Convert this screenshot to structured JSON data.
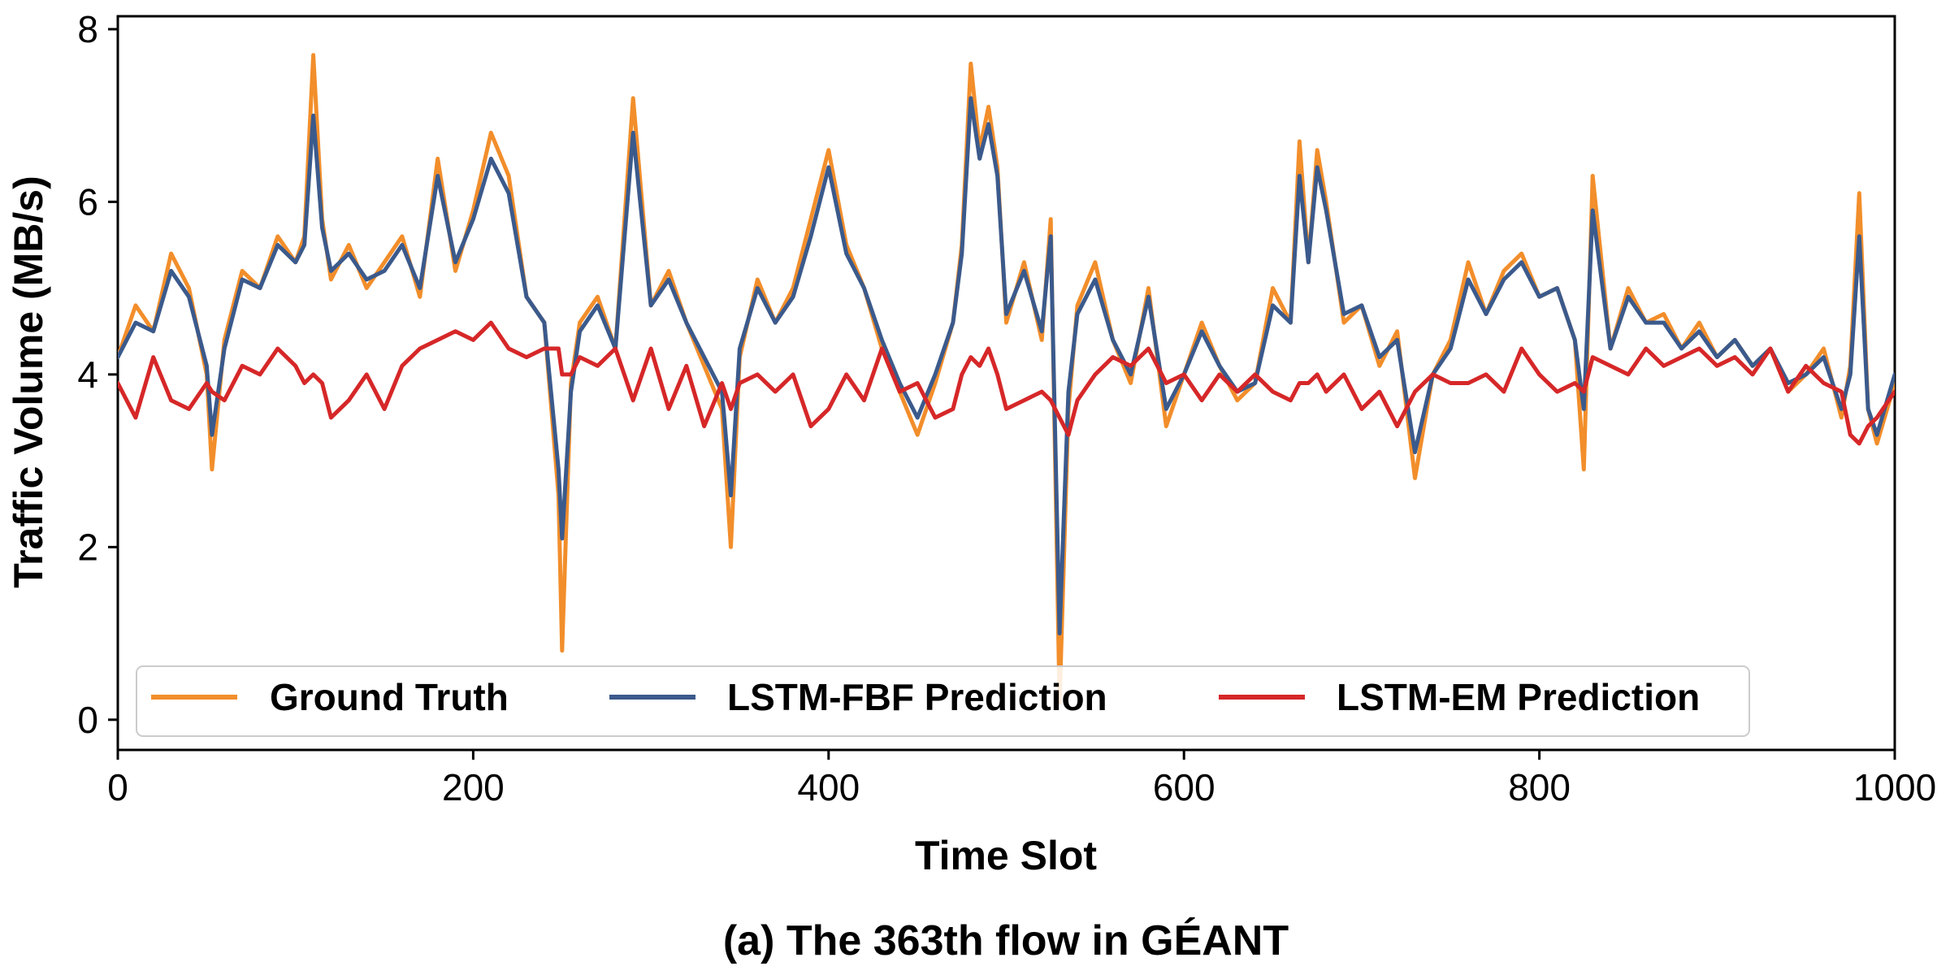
{
  "caption": "(a) The 363th flow in GÉANT",
  "chart_data": {
    "type": "line",
    "xlabel": "Time Slot",
    "ylabel": "Traffic Volume (MB/s)",
    "xlim": [
      0,
      1000
    ],
    "ylim": [
      -0.35,
      8.15
    ],
    "xticks": [
      0,
      200,
      400,
      600,
      800,
      1000
    ],
    "yticks": [
      0,
      2,
      4,
      6,
      8
    ],
    "grid": false,
    "legend_position": "bottom, inside plot",
    "x": [
      0,
      10,
      20,
      30,
      40,
      50,
      53,
      60,
      70,
      80,
      90,
      100,
      105,
      110,
      115,
      120,
      130,
      140,
      150,
      160,
      170,
      180,
      190,
      200,
      210,
      220,
      230,
      240,
      248,
      250,
      255,
      260,
      270,
      280,
      290,
      300,
      310,
      320,
      330,
      340,
      345,
      350,
      360,
      370,
      380,
      390,
      400,
      410,
      420,
      430,
      440,
      450,
      460,
      470,
      475,
      480,
      485,
      490,
      495,
      500,
      510,
      520,
      525,
      530,
      535,
      540,
      550,
      560,
      570,
      580,
      590,
      600,
      610,
      620,
      630,
      640,
      650,
      660,
      665,
      670,
      675,
      680,
      690,
      700,
      710,
      720,
      730,
      740,
      750,
      760,
      770,
      780,
      790,
      800,
      810,
      820,
      825,
      830,
      840,
      850,
      860,
      870,
      880,
      890,
      900,
      910,
      920,
      930,
      940,
      950,
      960,
      970,
      975,
      980,
      985,
      990,
      1000
    ],
    "series": [
      {
        "name": "Ground Truth",
        "color": "#F28E2B",
        "values": [
          4.2,
          4.8,
          4.5,
          5.4,
          5.0,
          4.0,
          2.9,
          4.4,
          5.2,
          5.0,
          5.6,
          5.3,
          5.6,
          7.7,
          5.8,
          5.1,
          5.5,
          5.0,
          5.3,
          5.6,
          4.9,
          6.5,
          5.2,
          5.9,
          6.8,
          6.3,
          4.9,
          4.6,
          2.6,
          0.8,
          3.9,
          4.6,
          4.9,
          4.3,
          7.2,
          4.8,
          5.2,
          4.6,
          4.1,
          3.6,
          2.0,
          4.2,
          5.1,
          4.6,
          5.0,
          5.8,
          6.6,
          5.5,
          5.0,
          4.3,
          3.8,
          3.3,
          3.9,
          4.6,
          5.5,
          7.6,
          6.6,
          7.1,
          6.4,
          4.6,
          5.3,
          4.4,
          5.8,
          0.2,
          3.6,
          4.8,
          5.3,
          4.4,
          3.9,
          5.0,
          3.4,
          4.0,
          4.6,
          4.1,
          3.7,
          3.9,
          5.0,
          4.6,
          6.7,
          5.3,
          6.6,
          6.0,
          4.6,
          4.8,
          4.1,
          4.5,
          2.8,
          4.0,
          4.4,
          5.3,
          4.7,
          5.2,
          5.4,
          4.9,
          5.0,
          4.4,
          2.9,
          6.3,
          4.3,
          5.0,
          4.6,
          4.7,
          4.3,
          4.6,
          4.2,
          4.4,
          4.1,
          4.3,
          3.8,
          4.0,
          4.3,
          3.5,
          4.1,
          6.1,
          3.6,
          3.2,
          3.9
        ]
      },
      {
        "name": "LSTM-FBF Prediction",
        "color": "#3B5A8C",
        "values": [
          4.2,
          4.6,
          4.5,
          5.2,
          4.9,
          4.1,
          3.3,
          4.3,
          5.1,
          5.0,
          5.5,
          5.3,
          5.5,
          7.0,
          5.7,
          5.2,
          5.4,
          5.1,
          5.2,
          5.5,
          5.0,
          6.3,
          5.3,
          5.8,
          6.5,
          6.1,
          4.9,
          4.6,
          2.9,
          2.1,
          3.8,
          4.5,
          4.8,
          4.3,
          6.8,
          4.8,
          5.1,
          4.6,
          4.2,
          3.8,
          2.6,
          4.3,
          5.0,
          4.6,
          4.9,
          5.6,
          6.4,
          5.4,
          5.0,
          4.4,
          3.9,
          3.5,
          4.0,
          4.6,
          5.4,
          7.2,
          6.5,
          6.9,
          6.3,
          4.7,
          5.2,
          4.5,
          5.6,
          1.0,
          3.8,
          4.7,
          5.1,
          4.4,
          4.0,
          4.9,
          3.6,
          4.0,
          4.5,
          4.1,
          3.8,
          3.9,
          4.8,
          4.6,
          6.3,
          5.3,
          6.4,
          5.9,
          4.7,
          4.8,
          4.2,
          4.4,
          3.1,
          4.0,
          4.3,
          5.1,
          4.7,
          5.1,
          5.3,
          4.9,
          5.0,
          4.4,
          3.6,
          5.9,
          4.3,
          4.9,
          4.6,
          4.6,
          4.3,
          4.5,
          4.2,
          4.4,
          4.1,
          4.3,
          3.9,
          4.0,
          4.2,
          3.6,
          4.0,
          5.6,
          3.6,
          3.3,
          4.0
        ]
      },
      {
        "name": "LSTM-EM Prediction",
        "color": "#D62728",
        "values": [
          3.9,
          3.5,
          4.2,
          3.7,
          3.6,
          3.9,
          3.8,
          3.7,
          4.1,
          4.0,
          4.3,
          4.1,
          3.9,
          4.0,
          3.9,
          3.5,
          3.7,
          4.0,
          3.6,
          4.1,
          4.3,
          4.4,
          4.5,
          4.4,
          4.6,
          4.3,
          4.2,
          4.3,
          4.3,
          4.0,
          4.0,
          4.2,
          4.1,
          4.3,
          3.7,
          4.3,
          3.6,
          4.1,
          3.4,
          3.9,
          3.6,
          3.9,
          4.0,
          3.8,
          4.0,
          3.4,
          3.6,
          4.0,
          3.7,
          4.3,
          3.8,
          3.9,
          3.5,
          3.6,
          4.0,
          4.2,
          4.1,
          4.3,
          4.0,
          3.6,
          3.7,
          3.8,
          3.7,
          3.5,
          3.3,
          3.7,
          4.0,
          4.2,
          4.1,
          4.3,
          3.9,
          4.0,
          3.7,
          4.0,
          3.8,
          4.0,
          3.8,
          3.7,
          3.9,
          3.9,
          4.0,
          3.8,
          4.0,
          3.6,
          3.8,
          3.4,
          3.8,
          4.0,
          3.9,
          3.9,
          4.0,
          3.8,
          4.3,
          4.0,
          3.8,
          3.9,
          3.8,
          4.2,
          4.1,
          4.0,
          4.3,
          4.1,
          4.2,
          4.3,
          4.1,
          4.2,
          4.0,
          4.3,
          3.8,
          4.1,
          3.9,
          3.8,
          3.3,
          3.2,
          3.4,
          3.5,
          3.8
        ]
      }
    ]
  }
}
